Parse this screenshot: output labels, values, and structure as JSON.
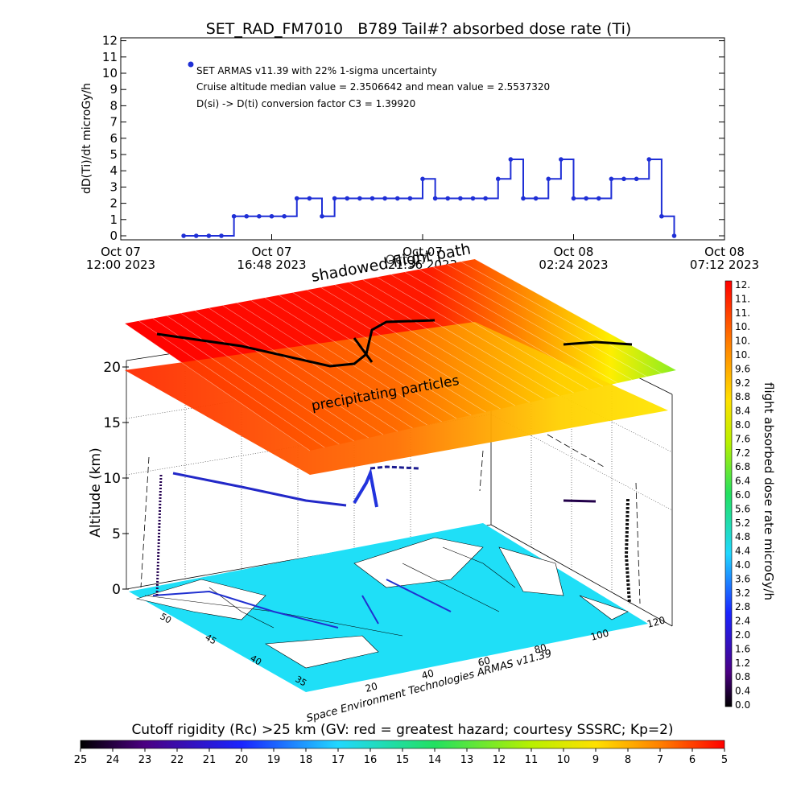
{
  "chart_data": [
    {
      "type": "line",
      "title": "SET_RAD_FM7010   B789 Tail#? absorbed dose rate (Ti)",
      "ylabel": "dD(Ti)/dt microGy/h",
      "ylim": [
        0,
        12
      ],
      "y_ticks": [
        "0",
        "1",
        "2",
        "3",
        "4",
        "5",
        "6",
        "7",
        "8",
        "9",
        "10",
        "11",
        "12"
      ],
      "x_tick_labels": [
        {
          "line1": "Oct 07",
          "line2": "12:00 2023"
        },
        {
          "line1": "Oct 07",
          "line2": "16:48 2023"
        },
        {
          "line1": "Oct 07",
          "line2": "21:36 2023"
        },
        {
          "line1": "Oct 08",
          "line2": "02:24 2023"
        },
        {
          "line1": "Oct 08",
          "line2": "07:12 2023"
        }
      ],
      "annotations": [
        "SET ARMAS v11.39 with 22% 1-sigma uncertainty",
        "Cruise altitude median value = 2.3506642 and mean value = 2.5537320",
        "D(si) -> D(ti) conversion factor C3 = 1.39920"
      ],
      "series_color": "#1f2fd6",
      "series": [
        {
          "x_hours_label": "hours since Oct 07 12:00",
          "x": [
            2.0,
            2.4,
            2.8,
            3.2,
            3.6,
            4.0,
            4.4,
            4.8,
            5.2,
            5.6,
            6.0,
            6.4,
            6.8,
            7.2,
            7.6,
            8.0,
            8.4,
            8.8,
            9.2,
            9.6,
            10.0,
            10.4,
            10.8,
            11.2,
            11.6,
            12.0,
            12.4,
            12.8,
            13.2,
            13.6,
            14.0,
            14.4,
            14.8,
            15.2,
            15.6,
            16.0,
            16.4,
            16.8,
            17.2,
            17.6
          ],
          "values": [
            0,
            0,
            0,
            0,
            1.2,
            1.2,
            1.2,
            1.2,
            1.2,
            2.3,
            2.3,
            1.2,
            2.3,
            2.3,
            2.3,
            2.3,
            2.3,
            2.3,
            2.3,
            3.5,
            2.3,
            2.3,
            2.3,
            2.3,
            2.3,
            3.5,
            4.7,
            2.3,
            2.3,
            3.5,
            4.7,
            2.3,
            2.3,
            2.3,
            3.5,
            3.5,
            3.5,
            4.7,
            1.2,
            0
          ]
        }
      ]
    },
    {
      "type": "scatter",
      "title": "",
      "zlabel": "Altitude (km)",
      "z_ticks": [
        "0",
        "5",
        "10",
        "15",
        "20"
      ],
      "lat_ticks": [
        "50",
        "45",
        "40",
        "35"
      ],
      "lon_ticks": [
        "20",
        "40",
        "60",
        "80",
        "100",
        "120"
      ],
      "labels": {
        "top_plane": "shadowed flight path",
        "top_plane_overlap": "Oct 07",
        "mid_plane": "precipitating particles",
        "credit": "Space Environment Technologies ARMAS v11.39"
      },
      "sea_color": "#1fdff7",
      "colorbar_right": {
        "label": "flight absorbed dose rate microGy/h",
        "ticks": [
          "12.",
          "11.",
          "11.",
          "10.",
          "10.",
          "10.",
          "9.6",
          "9.2",
          "8.8",
          "8.4",
          "8.0",
          "7.6",
          "7.2",
          "6.8",
          "6.4",
          "6.0",
          "5.6",
          "5.2",
          "4.8",
          "4.4",
          "4.0",
          "3.6",
          "3.2",
          "2.8",
          "2.4",
          "2.0",
          "1.6",
          "1.2",
          "0.8",
          "0.4",
          "0.0"
        ]
      }
    },
    {
      "type": "heatmap",
      "title": "Cutoff rigidity (Rc) >25 km (GV: red = greatest hazard; courtesy SSSRC; Kp=2)",
      "ticks": [
        "25",
        "24",
        "23",
        "22",
        "21",
        "20",
        "19",
        "18",
        "17",
        "16",
        "15",
        "14",
        "13",
        "12",
        "11",
        "10",
        "9",
        "8",
        "7",
        "6",
        "5"
      ]
    }
  ]
}
